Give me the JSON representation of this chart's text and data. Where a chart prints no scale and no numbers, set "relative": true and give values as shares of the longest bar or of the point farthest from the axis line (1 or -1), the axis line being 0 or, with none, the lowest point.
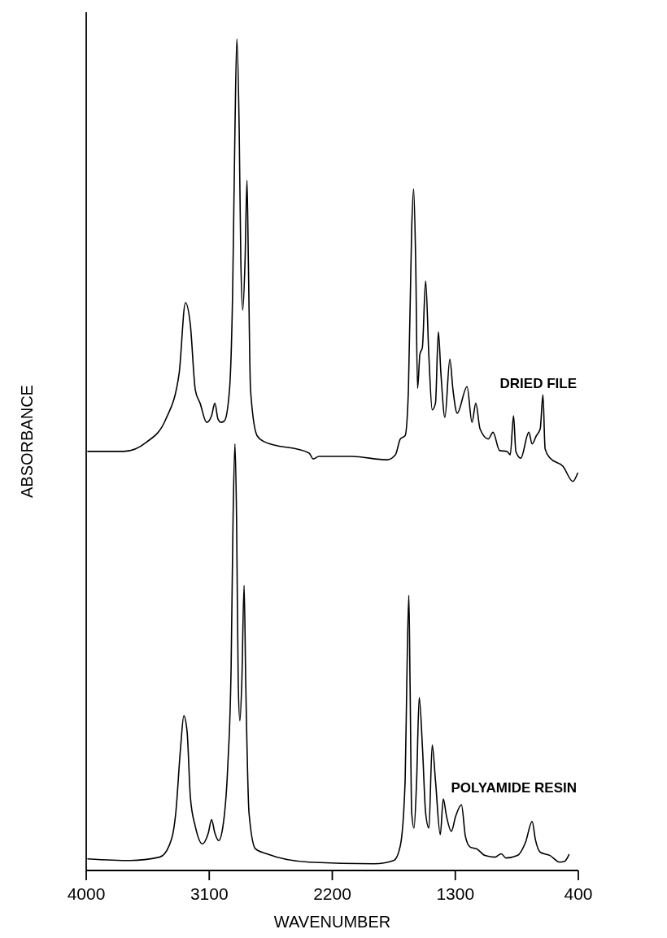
{
  "chart_data": {
    "type": "line",
    "xlabel": "WAVENUMBER",
    "ylabel": "ABSORBANCE",
    "relative": true,
    "legend": false,
    "marker": "none",
    "line_style": "solid",
    "xlim": [
      4000,
      400
    ],
    "xticks": [
      4000,
      3100,
      2200,
      1300,
      400
    ],
    "series": [
      {
        "name": "DRIED FILE",
        "color": "#000000",
        "x": [
          3988,
          3726,
          3560,
          3417,
          3321,
          3274,
          3238,
          3202,
          3167,
          3119,
          3083,
          3059,
          3036,
          3012,
          2988,
          2952,
          2929,
          2912,
          2898,
          2881,
          2869,
          2855,
          2838,
          2824,
          2814,
          2798,
          2750,
          2702,
          2369,
          2340,
          2298,
          2059,
          1798,
          1738,
          1702,
          1667,
          1643,
          1619,
          1605,
          1590,
          1576,
          1559,
          1541,
          1517,
          1493,
          1469,
          1445,
          1424,
          1405,
          1376,
          1340,
          1317,
          1286,
          1214,
          1178,
          1150,
          1119,
          1059,
          1024,
          976,
          921,
          898,
          874,
          857,
          821,
          762,
          738,
          707,
          679,
          659,
          643,
          607,
          512,
          440,
          405
        ],
        "values": [
          0.504,
          0.504,
          0.515,
          0.543,
          0.597,
          0.683,
          0.656,
          0.578,
          0.562,
          0.539,
          0.547,
          0.562,
          0.543,
          0.539,
          0.541,
          0.578,
          0.695,
          0.891,
          1.0,
          0.891,
          0.734,
          0.674,
          0.734,
          0.83,
          0.734,
          0.578,
          0.523,
          0.516,
          0.502,
          0.495,
          0.498,
          0.498,
          0.494,
          0.5,
          0.519,
          0.523,
          0.578,
          0.773,
          0.82,
          0.734,
          0.58,
          0.621,
          0.629,
          0.709,
          0.617,
          0.554,
          0.562,
          0.648,
          0.597,
          0.545,
          0.615,
          0.578,
          0.55,
          0.582,
          0.539,
          0.562,
          0.531,
          0.519,
          0.527,
          0.505,
          0.504,
          0.5,
          0.547,
          0.504,
          0.496,
          0.527,
          0.513,
          0.523,
          0.531,
          0.572,
          0.507,
          0.496,
          0.486,
          0.468,
          0.478
        ]
      },
      {
        "name": "POLYAMIDE RESIN",
        "color": "#000000",
        "x": [
          3988,
          3679,
          3464,
          3393,
          3345,
          3310,
          3286,
          3262,
          3238,
          3202,
          3150,
          3107,
          3083,
          3059,
          3031,
          3000,
          2964,
          2940,
          2926,
          2912,
          2900,
          2888,
          2876,
          2862,
          2845,
          2833,
          2809,
          2762,
          2679,
          2369,
          1893,
          1750,
          1702,
          1667,
          1655,
          1640,
          1631,
          1619,
          1602,
          1583,
          1564,
          1540,
          1517,
          1493,
          1469,
          1445,
          1410,
          1388,
          1364,
          1329,
          1298,
          1255,
          1226,
          1190,
          1143,
          1083,
          1012,
          964,
          929,
          845,
          786,
          738,
          714,
          679,
          607,
          536,
          500,
          469
        ],
        "values": [
          0.014,
          0.012,
          0.016,
          0.03,
          0.069,
          0.147,
          0.186,
          0.167,
          0.088,
          0.053,
          0.032,
          0.045,
          0.061,
          0.045,
          0.036,
          0.053,
          0.127,
          0.245,
          0.421,
          0.513,
          0.421,
          0.225,
          0.18,
          0.225,
          0.343,
          0.225,
          0.069,
          0.026,
          0.02,
          0.01,
          0.008,
          0.012,
          0.03,
          0.108,
          0.225,
          0.331,
          0.225,
          0.069,
          0.051,
          0.108,
          0.208,
          0.147,
          0.069,
          0.051,
          0.151,
          0.108,
          0.043,
          0.086,
          0.065,
          0.047,
          0.065,
          0.079,
          0.041,
          0.028,
          0.026,
          0.018,
          0.016,
          0.02,
          0.015,
          0.018,
          0.034,
          0.059,
          0.037,
          0.022,
          0.018,
          0.01,
          0.011,
          0.019
        ]
      }
    ]
  }
}
